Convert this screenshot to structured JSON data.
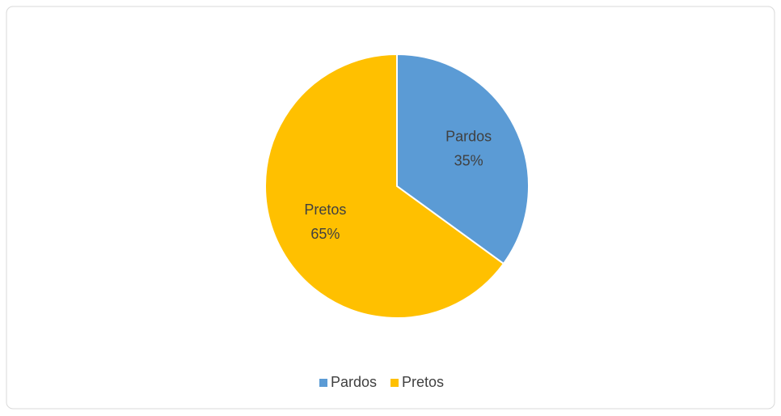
{
  "chart_data": {
    "type": "pie",
    "categories": [
      "Pardos",
      "Pretos"
    ],
    "values": [
      35,
      65
    ],
    "value_labels": [
      "35%",
      "65%"
    ],
    "colors": [
      "#5b9bd5",
      "#ffc000"
    ],
    "legend": "bottom"
  }
}
